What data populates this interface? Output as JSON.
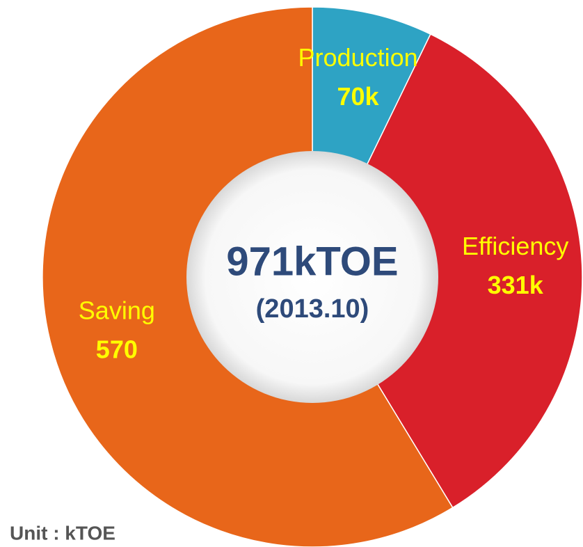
{
  "chart_data": {
    "type": "donut",
    "categories": [
      "Production",
      "Efficiency",
      "Saving"
    ],
    "values": [
      70,
      331,
      570
    ],
    "value_labels": [
      "70k",
      "331k",
      "570"
    ],
    "colors": [
      "#2ea3c4",
      "#d9202a",
      "#e8661a"
    ],
    "center_title": "971kTOE",
    "center_subtitle": "(2013.10)",
    "unit_label": "Unit : kTOE"
  }
}
